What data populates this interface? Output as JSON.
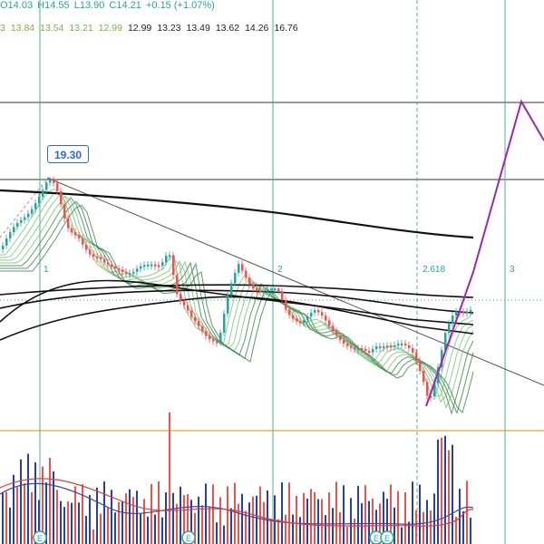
{
  "header": {
    "ohlc": [
      {
        "key": "open",
        "text": "O14.03"
      },
      {
        "key": "high",
        "text": "H14.55"
      },
      {
        "key": "low",
        "text": "L13.90"
      },
      {
        "key": "close",
        "text": "C14.21"
      },
      {
        "key": "change",
        "text": "+0.15 (+1.07%)"
      }
    ],
    "ma_values": [
      {
        "text": "3",
        "color": "#7cb342"
      },
      {
        "text": "13.84",
        "color": "#7cb342"
      },
      {
        "text": "13.54",
        "color": "#7cb342"
      },
      {
        "text": "13.21",
        "color": "#7cb342"
      },
      {
        "text": "12.99",
        "color": "#7cb342"
      },
      {
        "text": "12.99",
        "color": "#222222"
      },
      {
        "text": "13.23",
        "color": "#222222"
      },
      {
        "text": "13.49",
        "color": "#222222"
      },
      {
        "text": "13.62",
        "color": "#222222"
      },
      {
        "text": "14.26",
        "color": "#222222"
      },
      {
        "text": "16.76",
        "color": "#222222"
      }
    ]
  },
  "annotations": {
    "peak_label": "19.30",
    "fib_labels": [
      "1",
      "2",
      "2.618",
      "3"
    ],
    "earnings_marker": "E"
  },
  "colors": {
    "up": "#26a69a",
    "down": "#ef5350",
    "volume_up": "#2a3f9e",
    "volume_down": "#ef5350",
    "fib_line": "#4caf93",
    "projection": "#9c27b0",
    "hline": "#333333",
    "orange_line": "#f5a623",
    "dotted_price": "#26a69a"
  },
  "chart_data": {
    "type": "candlestick",
    "candles": [],
    "peak_price": 19.3,
    "fib_levels": [
      1,
      2,
      2.618,
      3
    ]
  }
}
